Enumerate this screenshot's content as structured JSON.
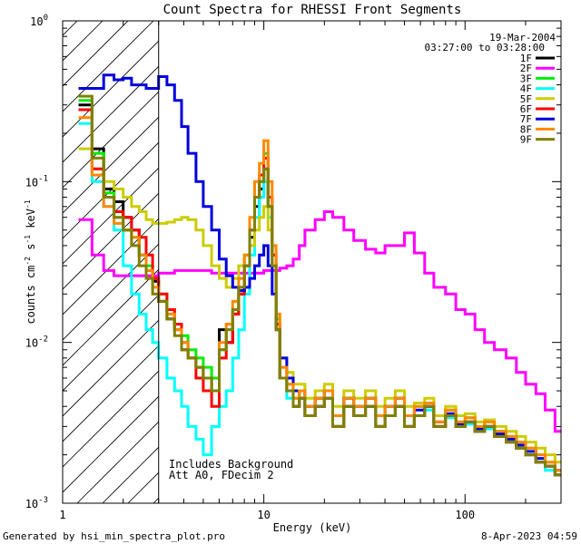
{
  "chart_data": {
    "type": "line",
    "title": "Count Spectra for RHESSI Front Segments",
    "xlabel": "Energy (keV)",
    "ylabel": "counts cm^-2 s^-1 keV^-1",
    "ylabel_parts": {
      "base": "counts cm",
      "exp1": "-2",
      "mid": " s",
      "exp2": "-1",
      "mid2": " keV",
      "exp3": "-1"
    },
    "xscale": "log",
    "yscale": "log",
    "xlim": [
      1.0,
      300
    ],
    "ylim": [
      0.001,
      1.0
    ],
    "x_ticks": [
      {
        "value": 1,
        "label": "1"
      },
      {
        "value": 10,
        "label": "10"
      },
      {
        "value": 100,
        "label": "100"
      }
    ],
    "y_ticks": [
      {
        "value": 0.001,
        "base": "10",
        "exp": "-3"
      },
      {
        "value": 0.01,
        "base": "10",
        "exp": "-2"
      },
      {
        "value": 0.1,
        "base": "10",
        "exp": "-1"
      },
      {
        "value": 1,
        "base": "10",
        "exp": "0"
      }
    ],
    "legend": {
      "position": "top-right",
      "date": "19-Mar-2004",
      "time_range": "03:27:00 to 03:28:00"
    },
    "hatched_region": {
      "x_from": 1.0,
      "x_to": 3.0,
      "vertical_line_at": 3.0
    },
    "annotations": [
      "Includes Background",
      "Att A0, FDecim 2"
    ],
    "series": [
      {
        "name": "1F",
        "color": "#000000",
        "x": [
          1.2,
          1.4,
          1.6,
          1.8,
          2.0,
          2.2,
          2.4,
          2.6,
          2.8,
          3.0,
          3.3,
          3.6,
          3.9,
          4.2,
          4.6,
          5.0,
          5.5,
          6.0,
          6.5,
          7.0,
          7.5,
          8.0,
          8.5,
          9.0,
          9.5,
          10.0,
          10.5,
          11.0,
          11.5,
          12.0,
          13,
          14,
          15,
          16,
          18,
          20,
          22,
          25,
          28,
          32,
          36,
          40,
          45,
          50,
          56,
          63,
          70,
          80,
          90,
          100,
          112,
          125,
          140,
          160,
          180,
          200,
          225,
          250,
          280
        ],
        "values": [
          0.3,
          0.16,
          0.09,
          0.075,
          0.06,
          0.05,
          0.035,
          0.028,
          0.024,
          0.018,
          0.014,
          0.012,
          0.009,
          0.008,
          0.007,
          0.006,
          0.005,
          0.012,
          0.01,
          0.015,
          0.02,
          0.03,
          0.045,
          0.07,
          0.09,
          0.12,
          0.07,
          0.03,
          0.012,
          0.006,
          0.005,
          0.004,
          0.005,
          0.0035,
          0.004,
          0.0045,
          0.003,
          0.004,
          0.0035,
          0.004,
          0.003,
          0.0035,
          0.004,
          0.003,
          0.0035,
          0.004,
          0.003,
          0.0035,
          0.003,
          0.0032,
          0.0028,
          0.003,
          0.0026,
          0.0024,
          0.0022,
          0.002,
          0.0018,
          0.0017,
          0.0015
        ]
      },
      {
        "name": "2F",
        "color": "#ff00ff",
        "x": [
          1.2,
          1.4,
          1.6,
          1.8,
          2.0,
          2.2,
          2.4,
          2.6,
          2.8,
          3.0,
          3.3,
          3.6,
          3.9,
          4.2,
          4.6,
          5.0,
          5.5,
          6.0,
          6.5,
          7.0,
          7.5,
          8.0,
          8.5,
          9.0,
          9.5,
          10.0,
          10.5,
          11.0,
          11.5,
          12.0,
          13,
          14,
          15,
          16,
          18,
          20,
          22,
          25,
          28,
          32,
          36,
          40,
          45,
          50,
          56,
          63,
          70,
          80,
          90,
          100,
          112,
          125,
          140,
          160,
          180,
          200,
          225,
          250,
          280
        ],
        "values": [
          0.058,
          0.035,
          0.028,
          0.026,
          0.026,
          0.026,
          0.026,
          0.026,
          0.026,
          0.027,
          0.027,
          0.028,
          0.028,
          0.028,
          0.028,
          0.028,
          0.027,
          0.027,
          0.027,
          0.027,
          0.027,
          0.027,
          0.027,
          0.027,
          0.027,
          0.028,
          0.028,
          0.028,
          0.028,
          0.029,
          0.03,
          0.033,
          0.04,
          0.05,
          0.058,
          0.065,
          0.06,
          0.05,
          0.043,
          0.038,
          0.036,
          0.04,
          0.04,
          0.048,
          0.036,
          0.027,
          0.022,
          0.02,
          0.016,
          0.015,
          0.012,
          0.01,
          0.009,
          0.008,
          0.0065,
          0.0055,
          0.0048,
          0.0038,
          0.0028
        ]
      },
      {
        "name": "3F",
        "color": "#00ee00",
        "x": [
          1.2,
          1.4,
          1.6,
          1.8,
          2.0,
          2.2,
          2.4,
          2.6,
          2.8,
          3.0,
          3.3,
          3.6,
          3.9,
          4.2,
          4.6,
          5.0,
          5.5,
          6.0,
          6.5,
          7.0,
          7.5,
          8.0,
          8.5,
          9.0,
          9.5,
          10.0,
          10.5,
          11.0,
          11.5,
          12.0,
          13,
          14,
          15,
          16,
          18,
          20,
          22,
          25,
          28,
          32,
          36,
          40,
          45,
          50,
          56,
          63,
          70,
          80,
          90,
          100,
          112,
          125,
          140,
          160,
          180,
          200,
          225,
          250,
          280
        ],
        "values": [
          0.32,
          0.15,
          0.085,
          0.06,
          0.05,
          0.045,
          0.035,
          0.03,
          0.025,
          0.02,
          0.016,
          0.013,
          0.011,
          0.009,
          0.008,
          0.007,
          0.006,
          0.009,
          0.012,
          0.016,
          0.022,
          0.035,
          0.05,
          0.08,
          0.1,
          0.15,
          0.08,
          0.035,
          0.014,
          0.007,
          0.0055,
          0.0045,
          0.005,
          0.004,
          0.0045,
          0.005,
          0.0035,
          0.0045,
          0.004,
          0.0045,
          0.0035,
          0.004,
          0.0045,
          0.0035,
          0.004,
          0.0042,
          0.0032,
          0.0038,
          0.0032,
          0.0034,
          0.003,
          0.0032,
          0.0028,
          0.0026,
          0.0024,
          0.0022,
          0.002,
          0.0018,
          0.0016
        ]
      },
      {
        "name": "4F",
        "color": "#00ffff",
        "x": [
          1.2,
          1.4,
          1.6,
          1.8,
          2.0,
          2.2,
          2.4,
          2.6,
          2.8,
          3.0,
          3.3,
          3.6,
          3.9,
          4.2,
          4.6,
          5.0,
          5.5,
          6.0,
          6.5,
          7.0,
          7.5,
          8.0,
          8.5,
          9.0,
          9.5,
          10.0,
          10.5,
          11.0,
          11.5,
          12.0,
          13,
          14,
          15,
          16,
          18,
          20,
          22,
          25,
          28,
          32,
          36,
          40,
          45,
          50,
          56,
          63,
          70,
          80,
          90,
          100,
          112,
          125,
          140,
          160,
          180,
          200,
          225,
          250,
          280
        ],
        "values": [
          0.23,
          0.1,
          0.07,
          0.05,
          0.03,
          0.02,
          0.015,
          0.012,
          0.01,
          0.008,
          0.006,
          0.005,
          0.004,
          0.003,
          0.0025,
          0.002,
          0.003,
          0.004,
          0.005,
          0.008,
          0.012,
          0.02,
          0.035,
          0.06,
          0.08,
          0.1,
          0.06,
          0.03,
          0.012,
          0.006,
          0.0045,
          0.004,
          0.0045,
          0.0035,
          0.004,
          0.0045,
          0.003,
          0.004,
          0.0035,
          0.004,
          0.003,
          0.0035,
          0.004,
          0.003,
          0.0035,
          0.0038,
          0.003,
          0.0034,
          0.003,
          0.0031,
          0.0028,
          0.0029,
          0.0026,
          0.0024,
          0.0022,
          0.002,
          0.0018,
          0.0016,
          0.0015
        ]
      },
      {
        "name": "5F",
        "color": "#cccc00",
        "x": [
          1.2,
          1.4,
          1.6,
          1.8,
          2.0,
          2.2,
          2.4,
          2.6,
          2.8,
          3.0,
          3.3,
          3.6,
          3.9,
          4.2,
          4.6,
          5.0,
          5.5,
          6.0,
          6.5,
          7.0,
          7.5,
          8.0,
          8.5,
          9.0,
          9.5,
          10.0,
          10.5,
          11.0,
          11.5,
          12.0,
          13,
          14,
          15,
          16,
          18,
          20,
          22,
          25,
          28,
          32,
          36,
          40,
          45,
          50,
          56,
          63,
          70,
          80,
          90,
          100,
          112,
          125,
          140,
          160,
          180,
          200,
          225,
          250,
          280
        ],
        "values": [
          0.16,
          0.12,
          0.1,
          0.09,
          0.08,
          0.07,
          0.065,
          0.058,
          0.055,
          0.055,
          0.056,
          0.058,
          0.06,
          0.058,
          0.05,
          0.04,
          0.03,
          0.025,
          0.022,
          0.025,
          0.03,
          0.035,
          0.04,
          0.05,
          0.06,
          0.07,
          0.05,
          0.03,
          0.015,
          0.008,
          0.0065,
          0.0055,
          0.0055,
          0.0045,
          0.005,
          0.0055,
          0.004,
          0.005,
          0.0045,
          0.005,
          0.004,
          0.0045,
          0.005,
          0.004,
          0.0042,
          0.0045,
          0.0035,
          0.004,
          0.0035,
          0.0036,
          0.0032,
          0.0033,
          0.003,
          0.0028,
          0.0026,
          0.0024,
          0.0022,
          0.002,
          0.0018
        ]
      },
      {
        "name": "6F",
        "color": "#ff0000",
        "x": [
          1.2,
          1.4,
          1.6,
          1.8,
          2.0,
          2.2,
          2.4,
          2.6,
          2.8,
          3.0,
          3.3,
          3.6,
          3.9,
          4.2,
          4.6,
          5.0,
          5.5,
          6.0,
          6.5,
          7.0,
          7.5,
          8.0,
          8.5,
          9.0,
          9.5,
          10.0,
          10.5,
          11.0,
          11.5,
          12.0,
          13,
          14,
          15,
          16,
          18,
          20,
          22,
          25,
          28,
          32,
          36,
          40,
          45,
          50,
          56,
          63,
          70,
          80,
          90,
          100,
          112,
          125,
          140,
          160,
          180,
          200,
          225,
          250,
          280
        ],
        "values": [
          0.28,
          0.12,
          0.08,
          0.065,
          0.06,
          0.05,
          0.045,
          0.035,
          0.025,
          0.02,
          0.016,
          0.013,
          0.01,
          0.008,
          0.006,
          0.005,
          0.004,
          0.008,
          0.01,
          0.015,
          0.02,
          0.03,
          0.05,
          0.08,
          0.11,
          0.14,
          0.08,
          0.035,
          0.013,
          0.006,
          0.005,
          0.004,
          0.0045,
          0.0035,
          0.004,
          0.0045,
          0.003,
          0.004,
          0.0035,
          0.004,
          0.003,
          0.0035,
          0.004,
          0.003,
          0.0035,
          0.004,
          0.003,
          0.0035,
          0.003,
          0.0032,
          0.0028,
          0.003,
          0.0026,
          0.0024,
          0.0022,
          0.002,
          0.0018,
          0.0017,
          0.0015
        ]
      },
      {
        "name": "7F",
        "color": "#0000dd",
        "x": [
          1.2,
          1.4,
          1.6,
          1.8,
          2.0,
          2.2,
          2.4,
          2.6,
          2.8,
          3.0,
          3.3,
          3.6,
          3.9,
          4.2,
          4.6,
          5.0,
          5.5,
          6.0,
          6.5,
          7.0,
          7.5,
          8.0,
          8.5,
          9.0,
          9.5,
          10.0,
          10.5,
          11.0,
          11.5,
          12.0,
          13,
          14,
          15,
          16,
          18,
          20,
          22,
          25,
          28,
          32,
          36,
          40,
          45,
          50,
          56,
          63,
          70,
          80,
          90,
          100,
          112,
          125,
          140,
          160,
          180,
          200,
          225,
          250,
          280
        ],
        "values": [
          0.38,
          0.38,
          0.46,
          0.43,
          0.44,
          0.4,
          0.4,
          0.38,
          0.38,
          0.45,
          0.4,
          0.32,
          0.22,
          0.15,
          0.1,
          0.07,
          0.05,
          0.033,
          0.026,
          0.022,
          0.021,
          0.022,
          0.025,
          0.03,
          0.035,
          0.04,
          0.03,
          0.02,
          0.012,
          0.008,
          0.006,
          0.005,
          0.005,
          0.004,
          0.0045,
          0.005,
          0.0035,
          0.0045,
          0.004,
          0.0045,
          0.0035,
          0.004,
          0.0045,
          0.0035,
          0.0038,
          0.004,
          0.0032,
          0.0036,
          0.0031,
          0.0032,
          0.0029,
          0.003,
          0.0027,
          0.0025,
          0.0023,
          0.0021,
          0.0019,
          0.0017,
          0.0016
        ]
      },
      {
        "name": "8F",
        "color": "#ff8800",
        "x": [
          1.2,
          1.4,
          1.6,
          1.8,
          2.0,
          2.2,
          2.4,
          2.6,
          2.8,
          3.0,
          3.3,
          3.6,
          3.9,
          4.2,
          4.6,
          5.0,
          5.5,
          6.0,
          6.5,
          7.0,
          7.5,
          8.0,
          8.5,
          9.0,
          9.5,
          10.0,
          10.5,
          11.0,
          11.5,
          12.0,
          13,
          14,
          15,
          16,
          18,
          20,
          22,
          25,
          28,
          32,
          36,
          40,
          45,
          50,
          56,
          63,
          70,
          80,
          90,
          100,
          112,
          125,
          140,
          160,
          180,
          200,
          225,
          250,
          280
        ],
        "values": [
          0.25,
          0.11,
          0.07,
          0.055,
          0.05,
          0.045,
          0.035,
          0.028,
          0.022,
          0.018,
          0.015,
          0.012,
          0.01,
          0.008,
          0.007,
          0.006,
          0.005,
          0.01,
          0.013,
          0.018,
          0.025,
          0.035,
          0.06,
          0.1,
          0.13,
          0.18,
          0.1,
          0.04,
          0.015,
          0.007,
          0.0055,
          0.0045,
          0.005,
          0.004,
          0.0045,
          0.005,
          0.0035,
          0.0045,
          0.004,
          0.0045,
          0.0035,
          0.004,
          0.0045,
          0.0035,
          0.004,
          0.0042,
          0.0032,
          0.0038,
          0.0032,
          0.0034,
          0.003,
          0.0032,
          0.0028,
          0.0026,
          0.0024,
          0.0022,
          0.002,
          0.0018,
          0.0016
        ]
      },
      {
        "name": "9F",
        "color": "#808000",
        "x": [
          1.2,
          1.4,
          1.6,
          1.8,
          2.0,
          2.2,
          2.4,
          2.6,
          2.8,
          3.0,
          3.3,
          3.6,
          3.9,
          4.2,
          4.6,
          5.0,
          5.5,
          6.0,
          6.5,
          7.0,
          7.5,
          8.0,
          8.5,
          9.0,
          9.5,
          10.0,
          10.5,
          11.0,
          11.5,
          12.0,
          13,
          14,
          15,
          16,
          18,
          20,
          22,
          25,
          28,
          32,
          36,
          40,
          45,
          50,
          56,
          63,
          70,
          80,
          90,
          100,
          112,
          125,
          140,
          160,
          180,
          200,
          225,
          250,
          280
        ],
        "values": [
          0.34,
          0.14,
          0.08,
          0.06,
          0.05,
          0.04,
          0.03,
          0.025,
          0.02,
          0.018,
          0.014,
          0.011,
          0.009,
          0.008,
          0.007,
          0.006,
          0.005,
          0.009,
          0.012,
          0.016,
          0.022,
          0.03,
          0.05,
          0.08,
          0.1,
          0.12,
          0.07,
          0.03,
          0.012,
          0.006,
          0.005,
          0.004,
          0.0045,
          0.0035,
          0.004,
          0.0045,
          0.003,
          0.004,
          0.0035,
          0.004,
          0.003,
          0.0035,
          0.004,
          0.003,
          0.0035,
          0.004,
          0.003,
          0.0035,
          0.003,
          0.0032,
          0.0028,
          0.003,
          0.0026,
          0.0024,
          0.0022,
          0.002,
          0.0018,
          0.0017,
          0.0015
        ]
      }
    ]
  },
  "footer": {
    "generated_by": "Generated by hsi_min_spectra_plot.pro",
    "date": "8-Apr-2023 04:59"
  }
}
